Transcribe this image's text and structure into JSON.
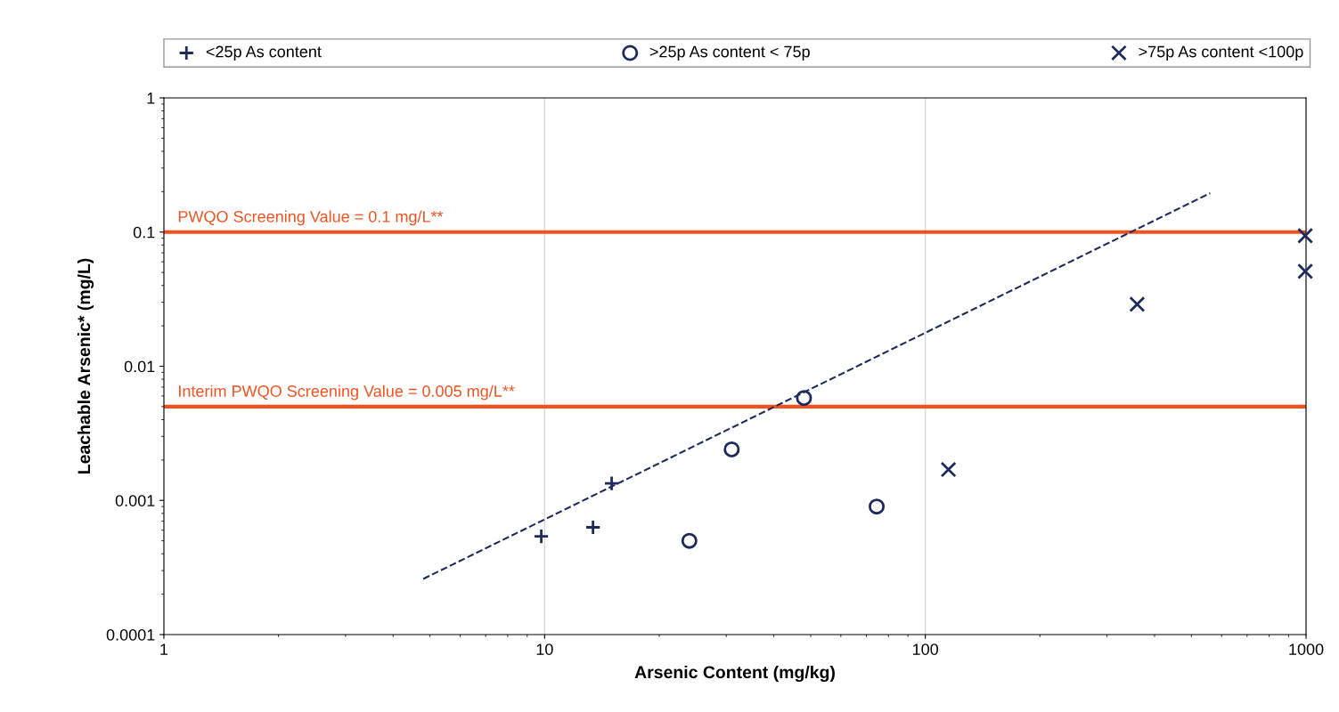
{
  "chart_data": {
    "type": "scatter",
    "xlabel": "Arsenic Content (mg/kg)",
    "ylabel": "Leachable Arsenic* (mg/L)",
    "log": "xy",
    "xlim": [
      1,
      1000
    ],
    "xticks": [
      1,
      10,
      100,
      1000
    ],
    "ylim": [
      0.0001,
      1
    ],
    "yticks": [
      0.0001,
      0.001,
      0.01,
      0.1,
      1
    ],
    "grid": "x",
    "legend": "top",
    "series": [
      {
        "name": "<25p As content",
        "color": "#1f2a5c",
        "marker": "plus",
        "x": [
          9.8,
          13.4,
          15.0
        ],
        "values": [
          0.00054,
          0.00063,
          0.00134
        ]
      },
      {
        "name": ">25p As content < 75p",
        "color": "#1f2a5c",
        "marker": "circle",
        "x": [
          24,
          31,
          48,
          74.5
        ],
        "values": [
          0.0005,
          0.0024,
          0.0058,
          0.0009
        ]
      },
      {
        "name": ">75p As content <100p",
        "color": "#1f2a5c",
        "marker": "cross",
        "x": [
          115,
          360,
          995,
          995
        ],
        "values": [
          0.0017,
          0.029,
          0.094,
          0.051
        ]
      },
      {
        "type": "line",
        "color": "#1f2a5c",
        "line_style": "dashed",
        "x": [
          4.8,
          560
        ],
        "values": [
          0.00026,
          0.195
        ]
      }
    ],
    "ref_lines": [
      {
        "axis": "y",
        "value": 0.1,
        "label": "PWQO Screening Value = 0.1 mg/L**",
        "color": "#f4511e"
      },
      {
        "axis": "y",
        "value": 0.005,
        "label": "Interim PWQO Screening Value = 0.005 mg/L**",
        "color": "#f4511e"
      }
    ]
  }
}
